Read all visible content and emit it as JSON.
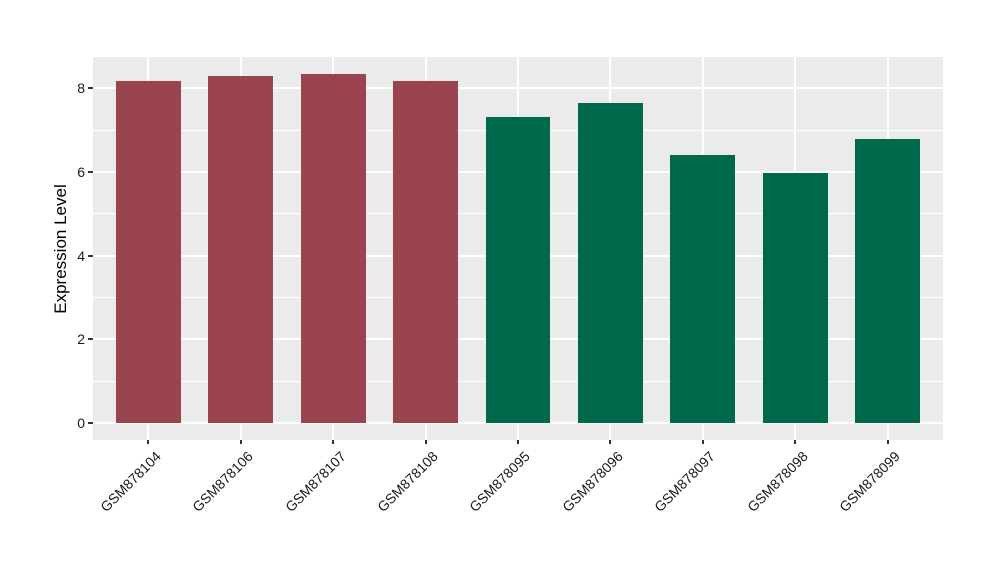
{
  "chart_data": {
    "type": "bar",
    "title": "",
    "xlabel": "",
    "ylabel": "Expression Level",
    "categories": [
      "GSM878104",
      "GSM878106",
      "GSM878107",
      "GSM878108",
      "GSM878095",
      "GSM878096",
      "GSM878097",
      "GSM878098",
      "GSM878099"
    ],
    "values": [
      8.17,
      8.29,
      8.34,
      8.17,
      7.3,
      7.65,
      6.41,
      5.97,
      6.79
    ],
    "bar_colors": [
      "#9A4450",
      "#9A4450",
      "#9A4450",
      "#9A4450",
      "#00694B",
      "#00694B",
      "#00694B",
      "#00694B",
      "#00694B"
    ],
    "group_colors": {
      "maroon": "#9A4450",
      "green": "#00694B"
    },
    "y_ticks": [
      0,
      2,
      4,
      6,
      8
    ],
    "y_minor_ticks": [
      1,
      3,
      5,
      7
    ],
    "ylim": [
      -0.42,
      8.74
    ],
    "bar_width_fraction": 0.7,
    "grid": true,
    "legend_position": "none",
    "panel_background": "#EBEBEB",
    "gridline_color": "#FFFFFF",
    "tick_color": "#333333",
    "label_color": "#1a1a1a",
    "x_label_rotation_deg": 45
  }
}
